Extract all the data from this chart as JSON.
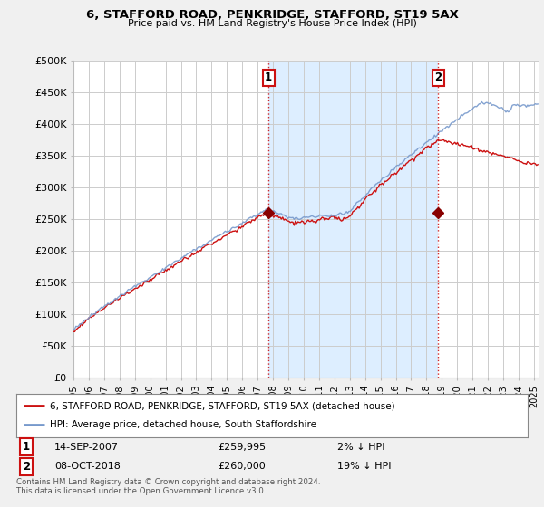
{
  "title": "6, STAFFORD ROAD, PENKRIDGE, STAFFORD, ST19 5AX",
  "subtitle": "Price paid vs. HM Land Registry's House Price Index (HPI)",
  "ylabel_ticks": [
    "£0",
    "£50K",
    "£100K",
    "£150K",
    "£200K",
    "£250K",
    "£300K",
    "£350K",
    "£400K",
    "£450K",
    "£500K"
  ],
  "ytick_values": [
    0,
    50000,
    100000,
    150000,
    200000,
    250000,
    300000,
    350000,
    400000,
    450000,
    500000
  ],
  "ylim": [
    0,
    500000
  ],
  "xlim_start": 1995.0,
  "xlim_end": 2025.3,
  "bg_color": "#f0f0f0",
  "plot_bg_color": "#ffffff",
  "shaded_bg_color": "#ddeeff",
  "grid_color": "#cccccc",
  "hpi_line_color": "#7799cc",
  "price_line_color": "#cc1111",
  "marker1_date": "14-SEP-2007",
  "marker1_price": "£259,995",
  "marker1_pct": "2% ↓ HPI",
  "marker1_x": 2007.71,
  "marker1_y": 259995,
  "marker2_date": "08-OCT-2018",
  "marker2_price": "£260,000",
  "marker2_pct": "19% ↓ HPI",
  "marker2_x": 2018.77,
  "marker2_y": 260000,
  "legend_label1": "6, STAFFORD ROAD, PENKRIDGE, STAFFORD, ST19 5AX (detached house)",
  "legend_label2": "HPI: Average price, detached house, South Staffordshire",
  "footer_text": "Contains HM Land Registry data © Crown copyright and database right 2024.\nThis data is licensed under the Open Government Licence v3.0.",
  "xtick_years": [
    1995,
    1996,
    1997,
    1998,
    1999,
    2000,
    2001,
    2002,
    2003,
    2004,
    2005,
    2006,
    2007,
    2008,
    2009,
    2010,
    2011,
    2012,
    2013,
    2014,
    2015,
    2016,
    2017,
    2018,
    2019,
    2020,
    2021,
    2022,
    2023,
    2024,
    2025
  ]
}
